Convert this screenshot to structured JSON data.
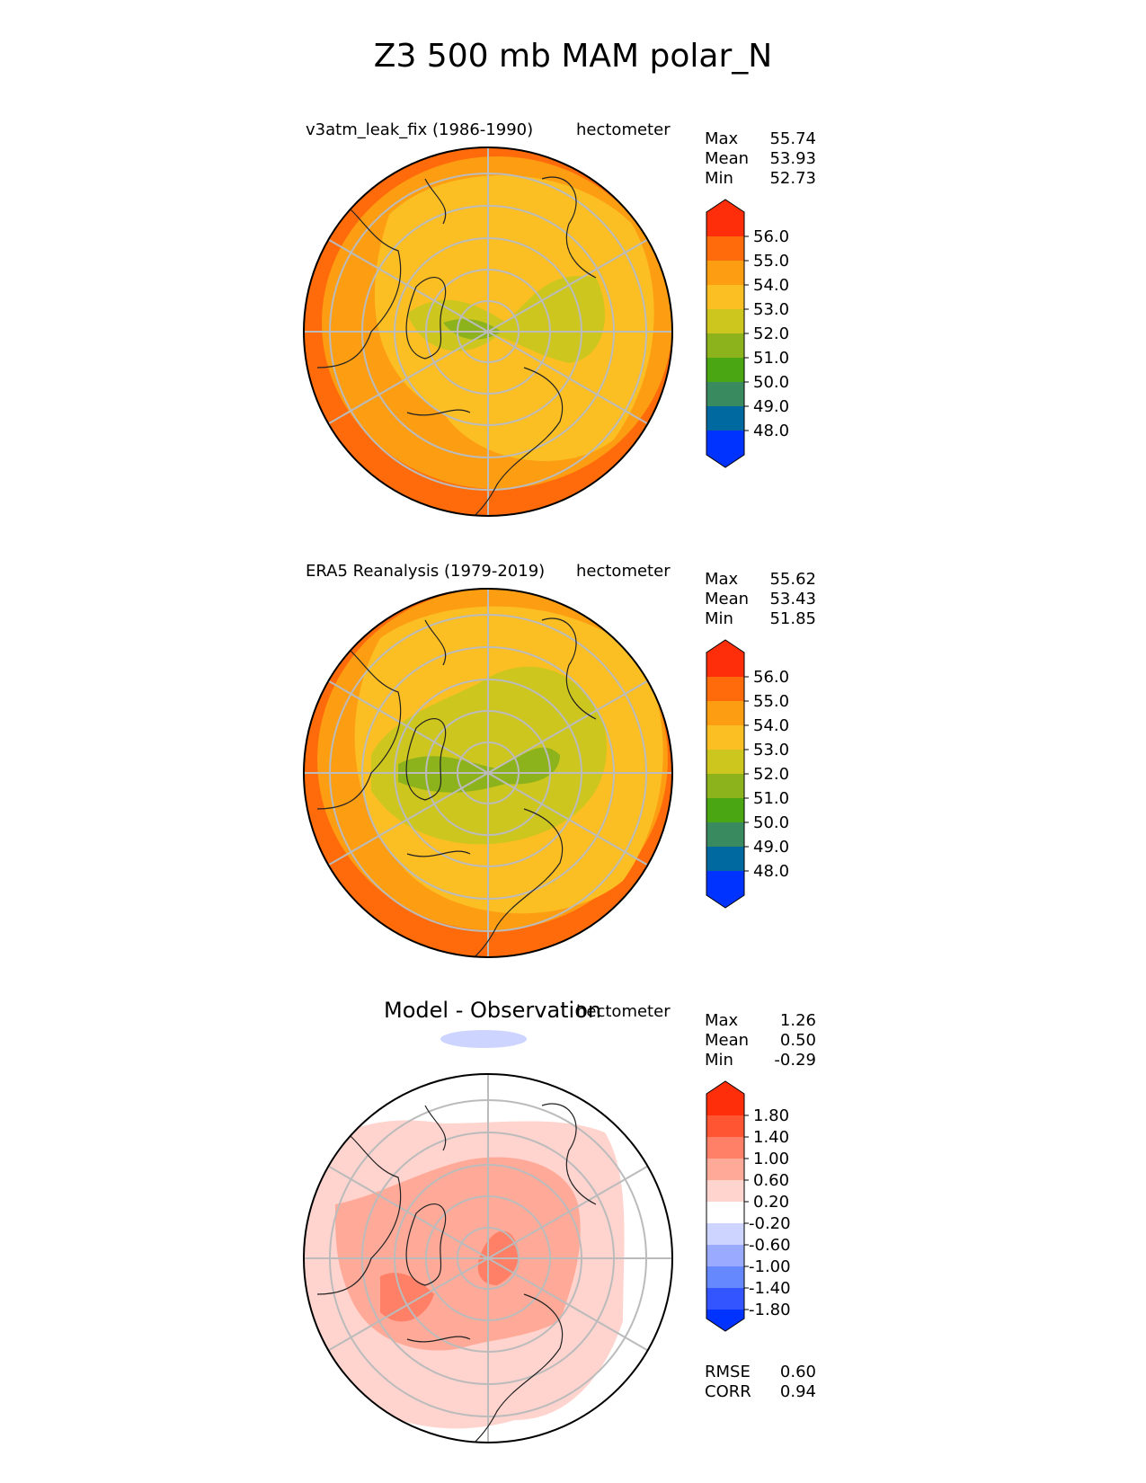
{
  "title": "Z3 500 mb MAM polar_N",
  "palette_abs": [
    "#0033ff",
    "#006aa0",
    "#3a8a60",
    "#4aa612",
    "#8db31c",
    "#cdc61e",
    "#fbbf24",
    "#fd9d12",
    "#ff6b0a",
    "#ff2e0a"
  ],
  "palette_diff": [
    "#0033ff",
    "#3355ff",
    "#6688ff",
    "#99aaff",
    "#ccd4ff",
    "#ffffff",
    "#ffd4cf",
    "#ffaa99",
    "#ff8066",
    "#ff5533",
    "#ff2e0a"
  ],
  "panels": [
    {
      "left_title": "v3atm_leak_fix (1986-1990)",
      "units": "hectometer",
      "stats": {
        "max_label": "Max",
        "max": "55.74",
        "mean_label": "Mean",
        "mean": "53.93",
        "min_label": "Min",
        "min": "52.73"
      },
      "ticks": [
        "56.0",
        "55.0",
        "54.0",
        "53.0",
        "52.0",
        "51.0",
        "50.0",
        "49.0",
        "48.0"
      ]
    },
    {
      "left_title": "ERA5 Reanalysis (1979-2019)",
      "units": "hectometer",
      "stats": {
        "max_label": "Max",
        "max": "55.62",
        "mean_label": "Mean",
        "mean": "53.43",
        "min_label": "Min",
        "min": "51.85"
      },
      "ticks": [
        "56.0",
        "55.0",
        "54.0",
        "53.0",
        "52.0",
        "51.0",
        "50.0",
        "49.0",
        "48.0"
      ]
    },
    {
      "center_title": "Model - Observation",
      "units": "hectometer",
      "stats": {
        "max_label": "Max",
        "max": "1.26",
        "mean_label": "Mean",
        "mean": "0.50",
        "min_label": "Min",
        "min": "-0.29"
      },
      "ticks": [
        "1.80",
        "1.40",
        "1.00",
        "0.60",
        "0.20",
        "-0.20",
        "-0.60",
        "-1.00",
        "-1.40",
        "-1.80"
      ],
      "metrics": {
        "rmse_label": "RMSE",
        "rmse": "0.60",
        "corr_label": "CORR",
        "corr": "0.94"
      }
    }
  ],
  "chart_data": [
    {
      "type": "polar-contour-map",
      "title": "v3atm_leak_fix (1986-1990)",
      "units": "hectometer",
      "levels": [
        48,
        49,
        50,
        51,
        52,
        53,
        54,
        55,
        56
      ],
      "stats": {
        "max": 55.74,
        "mean": 53.93,
        "min": 52.73
      },
      "projection": "north polar stereographic"
    },
    {
      "type": "polar-contour-map",
      "title": "ERA5 Reanalysis (1979-2019)",
      "units": "hectometer",
      "levels": [
        48,
        49,
        50,
        51,
        52,
        53,
        54,
        55,
        56
      ],
      "stats": {
        "max": 55.62,
        "mean": 53.43,
        "min": 51.85
      },
      "projection": "north polar stereographic"
    },
    {
      "type": "polar-contour-map",
      "title": "Model - Observation",
      "units": "hectometer",
      "levels": [
        -1.8,
        -1.4,
        -1.0,
        -0.6,
        -0.2,
        0.2,
        0.6,
        1.0,
        1.4,
        1.8
      ],
      "stats": {
        "max": 1.26,
        "mean": 0.5,
        "min": -0.29
      },
      "rmse": 0.6,
      "corr": 0.94,
      "projection": "north polar stereographic"
    }
  ]
}
